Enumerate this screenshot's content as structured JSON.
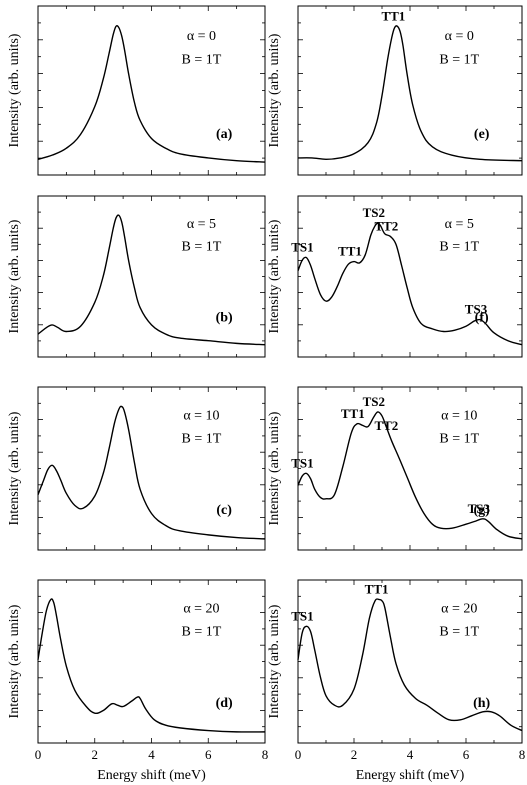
{
  "axes": {
    "ylabel": "Intensity (arb. units)",
    "xlabel": "Energy shift (meV)",
    "xticks": [
      "0",
      "2",
      "4",
      "6",
      "8"
    ]
  },
  "chart_data": [
    {
      "type": "line",
      "panel": "(a)",
      "alpha": "α = 0",
      "field": "B = 1T",
      "xlim": [
        0,
        8
      ],
      "ylim": [
        0,
        1
      ],
      "x": [
        0,
        0.5,
        1,
        1.5,
        2,
        2.3,
        2.5,
        2.65,
        2.75,
        2.85,
        2.95,
        3.05,
        3.2,
        3.4,
        3.6,
        4,
        4.5,
        5,
        6,
        7,
        8
      ],
      "values": [
        0.04,
        0.07,
        0.12,
        0.22,
        0.42,
        0.62,
        0.8,
        0.94,
        1.0,
        0.99,
        0.93,
        0.83,
        0.65,
        0.45,
        0.32,
        0.19,
        0.12,
        0.08,
        0.05,
        0.03,
        0.02
      ],
      "labels": []
    },
    {
      "type": "line",
      "panel": "(b)",
      "alpha": "α = 5",
      "field": "B = 1T",
      "xlim": [
        0,
        8
      ],
      "ylim": [
        0,
        1
      ],
      "x": [
        0,
        0.3,
        0.5,
        0.7,
        1,
        1.5,
        2,
        2.3,
        2.5,
        2.65,
        2.75,
        2.85,
        2.95,
        3.05,
        3.2,
        3.4,
        3.6,
        4,
        4.5,
        5,
        6,
        7,
        8
      ],
      "values": [
        0.1,
        0.15,
        0.17,
        0.15,
        0.12,
        0.16,
        0.34,
        0.54,
        0.74,
        0.9,
        0.98,
        1.0,
        0.95,
        0.84,
        0.65,
        0.45,
        0.3,
        0.17,
        0.1,
        0.07,
        0.05,
        0.03,
        0.02
      ],
      "labels": []
    },
    {
      "type": "line",
      "panel": "(c)",
      "alpha": "α = 10",
      "field": "B = 1T",
      "xlim": [
        0,
        8
      ],
      "ylim": [
        0,
        1
      ],
      "x": [
        0,
        0.2,
        0.35,
        0.5,
        0.65,
        0.8,
        1,
        1.3,
        1.6,
        2,
        2.3,
        2.5,
        2.7,
        2.85,
        2.95,
        3.05,
        3.2,
        3.4,
        3.6,
        4,
        4.5,
        5,
        6,
        7,
        8
      ],
      "values": [
        0.34,
        0.45,
        0.53,
        0.56,
        0.52,
        0.45,
        0.35,
        0.26,
        0.24,
        0.33,
        0.5,
        0.68,
        0.88,
        0.98,
        1.0,
        0.96,
        0.82,
        0.58,
        0.38,
        0.2,
        0.11,
        0.07,
        0.04,
        0.02,
        0.01
      ],
      "labels": []
    },
    {
      "type": "line",
      "panel": "(d)",
      "alpha": "α = 20",
      "field": "B = 1T",
      "xlim": [
        0,
        8
      ],
      "ylim": [
        0,
        1
      ],
      "x": [
        0,
        0.15,
        0.3,
        0.45,
        0.55,
        0.65,
        0.8,
        1,
        1.3,
        1.7,
        2,
        2.3,
        2.6,
        2.8,
        3,
        3.3,
        3.5,
        3.6,
        3.8,
        4.1,
        4.5,
        5,
        6,
        7,
        8
      ],
      "values": [
        0.55,
        0.75,
        0.92,
        1.0,
        0.98,
        0.88,
        0.7,
        0.5,
        0.32,
        0.2,
        0.15,
        0.17,
        0.22,
        0.21,
        0.2,
        0.24,
        0.27,
        0.26,
        0.18,
        0.1,
        0.06,
        0.04,
        0.02,
        0.01,
        0.01
      ],
      "labels": []
    },
    {
      "type": "line",
      "panel": "(e)",
      "alpha": "α = 0",
      "field": "B = 1T",
      "xlim": [
        0,
        8
      ],
      "ylim": [
        0,
        1
      ],
      "x": [
        0,
        0.5,
        1,
        1.5,
        2,
        2.5,
        2.8,
        3,
        3.2,
        3.35,
        3.45,
        3.55,
        3.65,
        3.75,
        3.9,
        4.1,
        4.4,
        4.8,
        5.5,
        6.5,
        8
      ],
      "values": [
        0.05,
        0.05,
        0.04,
        0.05,
        0.08,
        0.16,
        0.3,
        0.5,
        0.76,
        0.92,
        0.99,
        1.0,
        0.96,
        0.86,
        0.65,
        0.43,
        0.24,
        0.13,
        0.07,
        0.04,
        0.03
      ],
      "labels": [
        {
          "text": "TT1",
          "x": 3.55,
          "y": 1.0
        }
      ]
    },
    {
      "type": "line",
      "panel": "(f)",
      "alpha": "α = 5",
      "field": "B = 1T",
      "xlim": [
        0,
        8
      ],
      "ylim": [
        0,
        1
      ],
      "x": [
        0,
        0.15,
        0.3,
        0.45,
        0.6,
        0.8,
        1,
        1.2,
        1.4,
        1.6,
        1.8,
        2,
        2.2,
        2.4,
        2.6,
        2.75,
        2.85,
        2.95,
        3.1,
        3.3,
        3.5,
        3.7,
        3.9,
        4.1,
        4.4,
        4.8,
        5.2,
        5.6,
        6,
        6.3,
        6.5,
        6.7,
        7,
        7.5,
        8
      ],
      "values": [
        0.58,
        0.66,
        0.68,
        0.62,
        0.52,
        0.4,
        0.35,
        0.38,
        0.46,
        0.56,
        0.63,
        0.65,
        0.64,
        0.7,
        0.85,
        0.92,
        0.94,
        0.92,
        0.86,
        0.84,
        0.78,
        0.62,
        0.45,
        0.3,
        0.18,
        0.14,
        0.12,
        0.13,
        0.16,
        0.2,
        0.21,
        0.18,
        0.11,
        0.05,
        0.02
      ],
      "labels": [
        {
          "text": "TS1",
          "x": 0.3,
          "y": 0.68
        },
        {
          "text": "TT1",
          "x": 2.0,
          "y": 0.65
        },
        {
          "text": "TS2",
          "x": 2.85,
          "y": 0.94
        },
        {
          "text": "TT2",
          "x": 3.3,
          "y": 0.84
        },
        {
          "text": "TS3",
          "x": 6.5,
          "y": 0.21
        }
      ]
    },
    {
      "type": "line",
      "panel": "(g)",
      "alpha": "α = 10",
      "field": "B = 1T",
      "xlim": [
        0,
        8
      ],
      "ylim": [
        0,
        1
      ],
      "x": [
        0,
        0.15,
        0.3,
        0.45,
        0.6,
        0.8,
        1,
        1.3,
        1.6,
        1.9,
        2.1,
        2.3,
        2.5,
        2.7,
        2.85,
        3,
        3.15,
        3.35,
        3.6,
        3.9,
        4.2,
        4.5,
        4.8,
        5.1,
        5.5,
        6,
        6.3,
        6.6,
        6.8,
        7.1,
        7.5,
        8
      ],
      "values": [
        0.41,
        0.48,
        0.5,
        0.46,
        0.38,
        0.32,
        0.31,
        0.34,
        0.55,
        0.8,
        0.87,
        0.86,
        0.85,
        0.92,
        0.96,
        0.93,
        0.85,
        0.74,
        0.62,
        0.47,
        0.32,
        0.2,
        0.12,
        0.09,
        0.09,
        0.12,
        0.14,
        0.16,
        0.14,
        0.08,
        0.03,
        0.01
      ],
      "labels": [
        {
          "text": "TS1",
          "x": 0.3,
          "y": 0.5
        },
        {
          "text": "TT1",
          "x": 2.1,
          "y": 0.87
        },
        {
          "text": "TS2",
          "x": 2.85,
          "y": 0.96
        },
        {
          "text": "TT2",
          "x": 3.3,
          "y": 0.78
        },
        {
          "text": "TS3",
          "x": 6.6,
          "y": 0.16
        }
      ]
    },
    {
      "type": "line",
      "panel": "(h)",
      "alpha": "α = 20",
      "field": "B = 1T",
      "xlim": [
        0,
        8
      ],
      "ylim": [
        0,
        1
      ],
      "x": [
        0,
        0.15,
        0.3,
        0.45,
        0.6,
        0.8,
        1,
        1.3,
        1.6,
        2,
        2.3,
        2.55,
        2.75,
        2.9,
        3,
        3.1,
        3.3,
        3.5,
        3.8,
        4.2,
        4.6,
        5,
        5.4,
        5.8,
        6.2,
        6.6,
        6.9,
        7.2,
        7.6,
        8
      ],
      "values": [
        0.55,
        0.75,
        0.8,
        0.76,
        0.62,
        0.42,
        0.28,
        0.21,
        0.21,
        0.33,
        0.58,
        0.86,
        0.99,
        1.0,
        0.99,
        0.94,
        0.72,
        0.52,
        0.36,
        0.26,
        0.21,
        0.15,
        0.1,
        0.1,
        0.13,
        0.16,
        0.16,
        0.13,
        0.06,
        0.02
      ],
      "labels": [
        {
          "text": "TS1",
          "x": 0.3,
          "y": 0.8
        },
        {
          "text": "TT1",
          "x": 2.95,
          "y": 1.0
        }
      ]
    }
  ]
}
